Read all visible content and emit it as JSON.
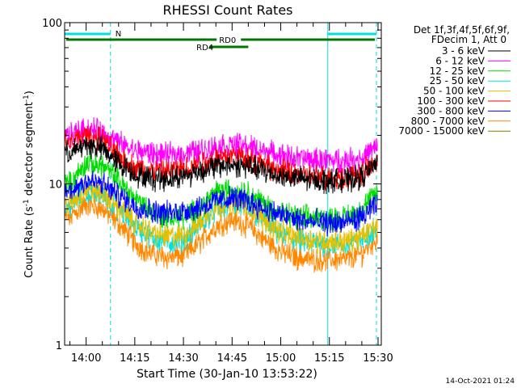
{
  "chart_data": {
    "type": "line",
    "title": "RHESSI Count Rates",
    "xlabel": "Start Time (30-Jan-10 13:53:22)",
    "ylabel_main": "Count Rate (s",
    "ylabel_sup1": "-1",
    "ylabel_mid": " detector segment",
    "ylabel_sup2": "-1",
    "ylabel_end": ")",
    "yscale": "log",
    "ylim": [
      1,
      100
    ],
    "y_ticks": [
      {
        "value": 1,
        "label": "1"
      },
      {
        "value": 10,
        "label": "10"
      },
      {
        "value": 100,
        "label": "100"
      }
    ],
    "xlim": [
      "13:53:22",
      "15:31:00"
    ],
    "x_ticks": [
      {
        "time": "14:00",
        "label": "14:00"
      },
      {
        "time": "14:15",
        "label": "14:15"
      },
      {
        "time": "14:30",
        "label": "14:30"
      },
      {
        "time": "14:45",
        "label": "14:45"
      },
      {
        "time": "15:00",
        "label": "15:00"
      },
      {
        "time": "15:15",
        "label": "15:15"
      },
      {
        "time": "15:30",
        "label": "15:30"
      }
    ],
    "legend_header": [
      "Det 1f,3f,4f,5f,6f,9f,",
      "FDecim 1, Att 0"
    ],
    "legend_position": "right",
    "x_times": [
      "13:55",
      "14:00",
      "14:05",
      "14:10",
      "14:15",
      "14:20",
      "14:25",
      "14:30",
      "14:35",
      "14:40",
      "14:45",
      "14:50",
      "14:55",
      "15:00",
      "15:05",
      "15:10",
      "15:15",
      "15:20",
      "15:25",
      "15:30"
    ],
    "series": [
      {
        "name": "3 - 6 keV",
        "color": "#000000",
        "values": [
          15.5,
          17.5,
          16.5,
          13.5,
          11.5,
          10.8,
          10.8,
          11.2,
          12,
          12.8,
          13.2,
          12.8,
          12,
          11.2,
          10.8,
          10.5,
          10.5,
          10.5,
          11,
          13.5
        ]
      },
      {
        "name": "6 - 12 keV",
        "color": "#ff00ff",
        "values": [
          20,
          22,
          21,
          18,
          16,
          15.5,
          15,
          15.5,
          16,
          17,
          17.5,
          17,
          16,
          15,
          14.5,
          14,
          14,
          14,
          14.5,
          17
        ]
      },
      {
        "name": "12 - 25 keV",
        "color": "#00dd00",
        "values": [
          10,
          13.5,
          13,
          10.5,
          8.2,
          6.8,
          6.2,
          6.2,
          7.2,
          8.8,
          9.3,
          8.8,
          7.5,
          6.5,
          6.2,
          6.2,
          6.1,
          6.2,
          7,
          9
        ]
      },
      {
        "name": "25 - 50 keV",
        "color": "#00e0e0",
        "values": [
          7.2,
          9,
          8.5,
          7,
          5.5,
          4.7,
          4.3,
          4.5,
          5.5,
          7,
          7.5,
          7,
          5.8,
          4.8,
          4.5,
          4.3,
          4.2,
          4.2,
          4.5,
          5.5
        ]
      },
      {
        "name": "50 - 100 keV",
        "color": "#e8c000",
        "values": [
          7.5,
          9.2,
          8.8,
          7.2,
          5.8,
          5,
          4.7,
          4.8,
          5.8,
          7.2,
          7.8,
          7.2,
          6,
          5,
          4.7,
          4.5,
          4.4,
          4.4,
          4.7,
          5.7
        ]
      },
      {
        "name": "100 - 300 keV",
        "color": "#ff0000",
        "values": [
          18,
          20,
          18.5,
          15,
          12.5,
          12,
          12,
          12.5,
          13.5,
          14.5,
          15,
          14.5,
          13,
          12,
          11.5,
          11,
          11,
          11,
          11.5,
          14
        ]
      },
      {
        "name": "300 - 800 keV",
        "color": "#0000ff",
        "values": [
          9,
          10.5,
          10,
          8.5,
          7.3,
          6.8,
          6.6,
          6.8,
          7.2,
          7.8,
          8.2,
          7.8,
          7,
          6.4,
          6,
          5.8,
          5.7,
          5.8,
          6.2,
          7.5
        ]
      },
      {
        "name": "800 - 7000 keV",
        "color": "#ff8800",
        "values": [
          6.2,
          7.5,
          7,
          5.7,
          4.3,
          3.7,
          3.5,
          3.6,
          4.3,
          5.5,
          6,
          5.5,
          4.5,
          3.8,
          3.5,
          3.4,
          3.4,
          3.4,
          3.7,
          4.7
        ]
      },
      {
        "name": "7000 - 15000 keV",
        "color": "#808000",
        "values": []
      }
    ],
    "attenuator_lines": [
      {
        "time": "13:53:22",
        "color": "#00e0e0",
        "style": "solid"
      },
      {
        "time": "14:07:30",
        "color": "#00e0e0",
        "style": "dashed"
      },
      {
        "time": "15:14:30",
        "color": "#00e0e0",
        "style": "solid"
      },
      {
        "time": "15:29:30",
        "color": "#00e0e0",
        "style": "dashed"
      }
    ],
    "flag_bars": [
      {
        "label": "N",
        "color": "#00e0e0",
        "level": 1,
        "segments": [
          [
            "13:53:22",
            "14:07:30"
          ],
          [
            "15:14:30",
            "15:29:30"
          ]
        ]
      },
      {
        "label": "RD0",
        "color": "#007700",
        "level": 2,
        "segments": [
          [
            "13:53:22",
            "15:30:00"
          ]
        ],
        "label_at": "14:41:00"
      },
      {
        "label": "RD4",
        "color": "#007700",
        "level": 3,
        "segments": [
          [
            "14:38:00",
            "14:50:00"
          ]
        ],
        "label_at": "14:34:00"
      }
    ]
  },
  "footer": {
    "date_stamp": "14-Oct-2021 01:24"
  }
}
